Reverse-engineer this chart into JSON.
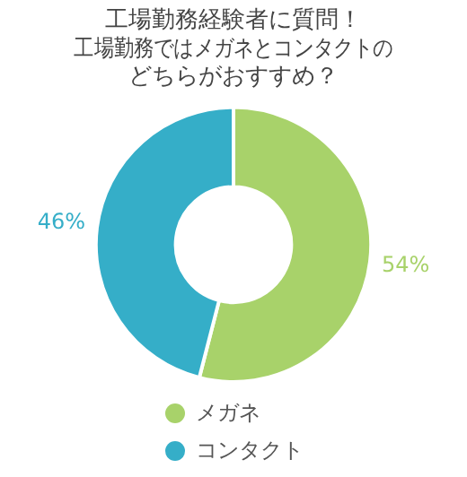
{
  "chart_data": {
    "type": "donut",
    "title": "工場勤務経験者に質問！工場勤務ではメガネとコンタクトのどちらがおすすめ？",
    "value_labels": [
      "54%",
      "46%"
    ],
    "categories": [
      "メガネ",
      "コンタクト"
    ],
    "values": [
      54,
      46
    ],
    "colors": [
      "#a8d26a",
      "#35aec8"
    ],
    "legend": "bottom",
    "marker": "circle"
  }
}
